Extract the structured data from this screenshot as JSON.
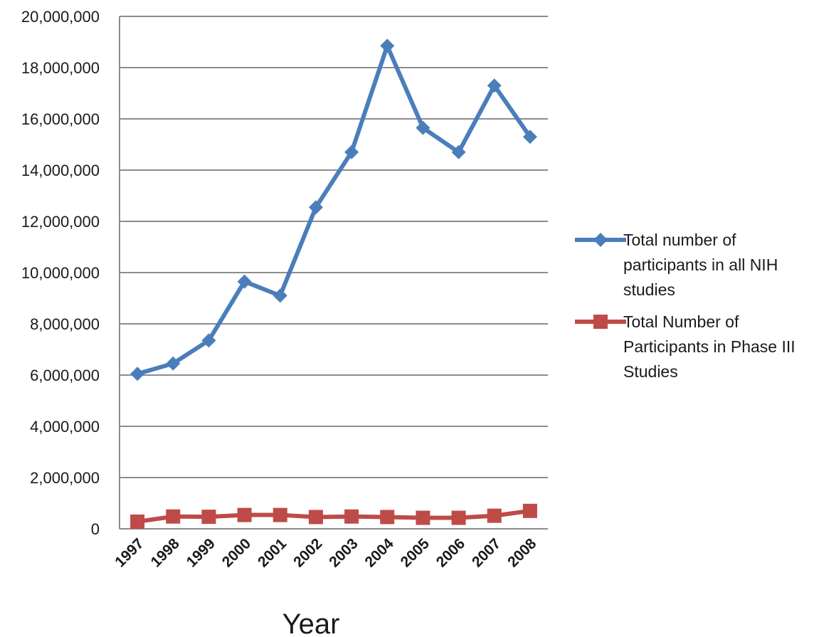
{
  "chart_data": {
    "type": "line",
    "title": "",
    "xlabel": "Year",
    "ylabel": "",
    "categories": [
      "1997",
      "1998",
      "1999",
      "2000",
      "2001",
      "2002",
      "2003",
      "2004",
      "2005",
      "2006",
      "2007",
      "2008"
    ],
    "ylim": [
      0,
      20000000
    ],
    "y_ticks": [
      {
        "value": 0,
        "label": "0"
      },
      {
        "value": 2000000,
        "label": "2,000,000"
      },
      {
        "value": 4000000,
        "label": "4,000,000"
      },
      {
        "value": 6000000,
        "label": "6,000,000"
      },
      {
        "value": 8000000,
        "label": "8,000,000"
      },
      {
        "value": 10000000,
        "label": "10,000,000"
      },
      {
        "value": 12000000,
        "label": "12,000,000"
      },
      {
        "value": 14000000,
        "label": "14,000,000"
      },
      {
        "value": 16000000,
        "label": "16,000,000"
      },
      {
        "value": 18000000,
        "label": "18,000,000"
      },
      {
        "value": 20000000,
        "label": "20,000,000"
      }
    ],
    "grid": true,
    "legend_position": "right",
    "series": [
      {
        "name": "Total number of participants in all NIH studies",
        "legend_lines": [
          "Total number of",
          "participants in all NIH",
          "studies"
        ],
        "color": "#4a7ebb",
        "marker": "diamond",
        "values": [
          6050000,
          6450000,
          7350000,
          9650000,
          9100000,
          12550000,
          14700000,
          18850000,
          15650000,
          14700000,
          17300000,
          15300000
        ]
      },
      {
        "name": "Total Number of Participants in Phase III Studies",
        "legend_lines": [
          "Total Number of",
          "Participants in Phase III",
          "Studies"
        ],
        "color": "#be4b48",
        "marker": "square",
        "values": [
          280000,
          480000,
          470000,
          540000,
          540000,
          460000,
          480000,
          460000,
          430000,
          430000,
          510000,
          700000
        ]
      }
    ]
  }
}
